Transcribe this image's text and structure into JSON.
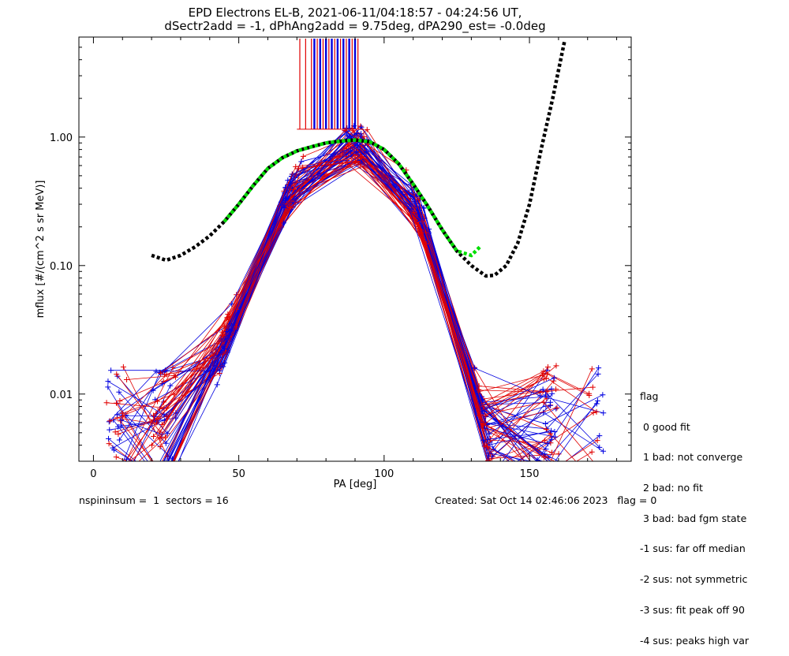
{
  "chart_data": {
    "type": "scatter",
    "title": "EPD Electrons EL-B, 2021-06-11/04:18:57 - 04:24:56 UT,",
    "subtitle": "dSectr2add = -1, dPhAng2add = 9.75deg, dPA290_est=  -0.0deg",
    "xlabel": "PA [deg]",
    "ylabel": "mflux [#/(cm^2 s sr MeV)]",
    "xlim": [
      -5,
      185
    ],
    "ylim": [
      0.003,
      6.0
    ],
    "yscale": "log",
    "xticks": [
      0,
      50,
      100,
      150
    ],
    "xtick_labels": [
      "0",
      "50",
      "100",
      "150"
    ],
    "yticks": [
      0.01,
      0.1,
      1.0
    ],
    "ytick_labels": [
      "0.01",
      "0.10",
      "1.00"
    ],
    "grid": false,
    "colors": {
      "red_series": "#e00000",
      "blue_series": "#0000e0",
      "fit_green": "#00dd00",
      "fit_black": "#000000"
    },
    "fit_green": {
      "x": [
        45,
        50,
        55,
        60,
        65,
        70,
        75,
        80,
        85,
        90,
        95,
        100,
        105,
        110,
        115,
        120,
        125,
        130,
        133
      ],
      "y": [
        0.22,
        0.3,
        0.42,
        0.57,
        0.69,
        0.78,
        0.84,
        0.9,
        0.93,
        0.95,
        0.92,
        0.8,
        0.62,
        0.43,
        0.29,
        0.19,
        0.13,
        0.12,
        0.14
      ]
    },
    "fit_black": {
      "x": [
        20,
        25,
        30,
        35,
        40,
        45,
        50,
        55,
        60,
        65,
        70,
        75,
        80,
        85,
        90,
        95,
        100,
        105,
        110,
        115,
        120,
        125,
        130,
        135,
        138,
        142,
        146,
        150,
        154,
        158,
        162
      ],
      "y": [
        0.12,
        0.11,
        0.12,
        0.14,
        0.17,
        0.22,
        0.3,
        0.42,
        0.57,
        0.69,
        0.78,
        0.84,
        0.9,
        0.93,
        0.95,
        0.92,
        0.8,
        0.62,
        0.43,
        0.29,
        0.19,
        0.13,
        0.1,
        0.083,
        0.084,
        0.1,
        0.15,
        0.3,
        0.8,
        2.0,
        5.5
      ]
    },
    "pa_markers_red_x": [
      71,
      73,
      75,
      77,
      79,
      81,
      83,
      85,
      87,
      89,
      91
    ],
    "pa_markers_blue_x": [
      76,
      78,
      80,
      82,
      84,
      86,
      88,
      90
    ]
  },
  "legend": {
    "title": "flag",
    "items": [
      " 0 good fit",
      " 1 bad: not converge",
      " 2 bad: no fit",
      " 3 bad: bad fgm state",
      "-1 sus: far off median",
      "-2 sus: not symmetric",
      "-3 sus: fit peak off 90",
      "-4 sus: peaks high var"
    ]
  },
  "footer": {
    "left": "nspininsum =  1  sectors = 16",
    "right": "Created: Sat Oct 14 02:46:06 2023   flag = 0"
  }
}
